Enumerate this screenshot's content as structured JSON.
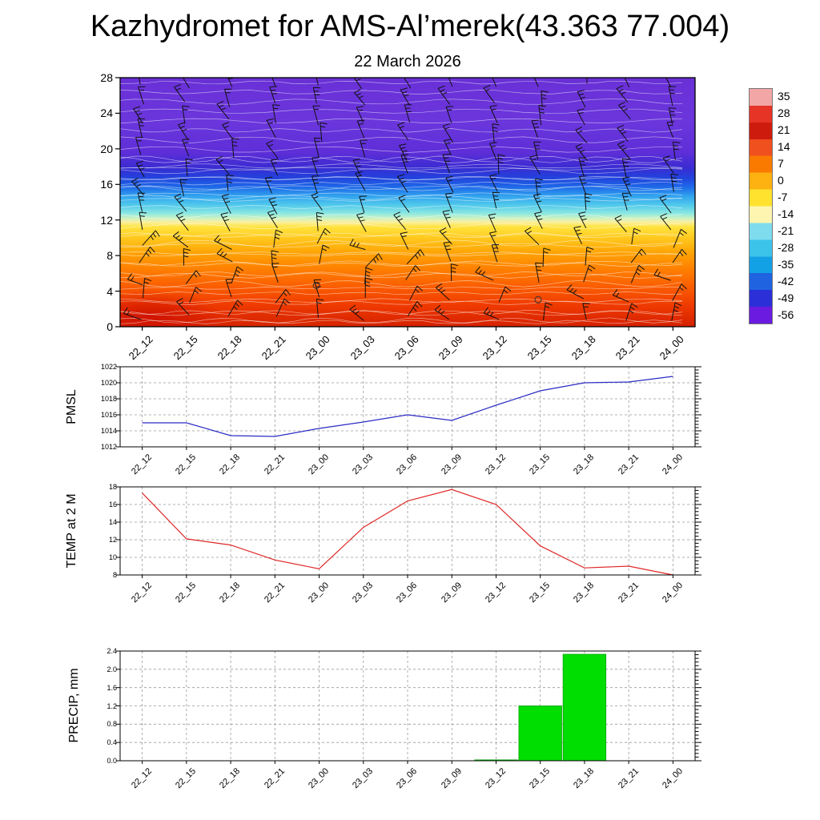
{
  "title": "Kazhydromet for AMS-Al’merek(43.363 77.004)",
  "subtitle": "22 March 2026",
  "times": [
    "22_12",
    "22_15",
    "22_18",
    "22_21",
    "23_00",
    "23_03",
    "23_06",
    "23_09",
    "23_12",
    "23_15",
    "23_18",
    "23_21",
    "24_00"
  ],
  "chart_data": [
    {
      "id": "cross-section",
      "type": "heatmap",
      "title": "22 March 2026",
      "ylabel": "",
      "ylim": [
        0,
        28
      ],
      "yticks": [
        "0",
        "4",
        "8",
        "12",
        "16",
        "20",
        "24",
        "28"
      ],
      "description": "Time-height temperature cross-section (deg C) with wind barbs: warm red/orange near surface, yellow near 10-11 km, cyan/blue 13-17 km, purple above 18 km; white contour lines overlaid; two calm-wind circles near 23_00 and 23_15 at low levels",
      "band_stops": [
        [
          0,
          "#6930d6"
        ],
        [
          0.18,
          "#6b36dc"
        ],
        [
          0.3,
          "#5e2ed8"
        ],
        [
          0.36,
          "#3b2cd2"
        ],
        [
          0.4,
          "#2341dc"
        ],
        [
          0.44,
          "#1e6ae8"
        ],
        [
          0.475,
          "#31a2ee"
        ],
        [
          0.51,
          "#4fc8ec"
        ],
        [
          0.545,
          "#8ce8e2"
        ],
        [
          0.565,
          "#cff2c0"
        ],
        [
          0.58,
          "#fbefa0"
        ],
        [
          0.6,
          "#ffe33c"
        ],
        [
          0.645,
          "#ffc81e"
        ],
        [
          0.7,
          "#ffa506"
        ],
        [
          0.765,
          "#ff8200"
        ],
        [
          0.835,
          "#fb5f00"
        ],
        [
          0.91,
          "#f03c00"
        ],
        [
          0.965,
          "#e02a00"
        ],
        [
          1,
          "#d62200"
        ]
      ],
      "colorbar": {
        "ticks": [
          "35",
          "28",
          "21",
          "14",
          "7",
          "0",
          "-7",
          "-14",
          "-21",
          "-28",
          "-35",
          "-42",
          "-49",
          "-56"
        ],
        "colors_top_to_bottom": [
          "#f2a6a6",
          "#e63427",
          "#cd1c0e",
          "#f04f1e",
          "#fa7a00",
          "#fdb211",
          "#ffe22e",
          "#fdf5b0",
          "#7fdbee",
          "#3cc3ea",
          "#13a1e6",
          "#1f63e0",
          "#2a2fd8",
          "#6a1bdf"
        ]
      }
    },
    {
      "id": "pmsl",
      "type": "line",
      "ylabel": "PMSL",
      "color": "#2b2bc4",
      "ylim": [
        1012,
        1022
      ],
      "yticks": [
        "1012",
        "1014",
        "1016",
        "1018",
        "1020",
        "1022"
      ],
      "values": [
        1015,
        1015,
        1013.4,
        1013.3,
        1014.3,
        1015.1,
        1016,
        1015.3,
        1017.2,
        1019,
        1020,
        1020.1,
        1020.8
      ]
    },
    {
      "id": "temp2m",
      "type": "line",
      "ylabel": "TEMP at 2 M",
      "color": "#e02828",
      "ylim": [
        8,
        18
      ],
      "yticks": [
        "8",
        "10",
        "12",
        "14",
        "16",
        "18"
      ],
      "values": [
        17.3,
        12.1,
        11.4,
        9.7,
        8.7,
        13.4,
        16.4,
        17.7,
        16,
        11.3,
        8.8,
        9,
        8
      ]
    },
    {
      "id": "precip",
      "type": "bar",
      "ylabel": "PRECIP, mm",
      "color": "#00dd00",
      "ylim": [
        0,
        2.4
      ],
      "yticks": [
        "0.0",
        "0.4",
        "0.8",
        "1.2",
        "1.6",
        "2.0",
        "2.4"
      ],
      "values": [
        0,
        0,
        0,
        0,
        0,
        0,
        0,
        0,
        0.02,
        1.2,
        2.33,
        0,
        0
      ]
    }
  ]
}
